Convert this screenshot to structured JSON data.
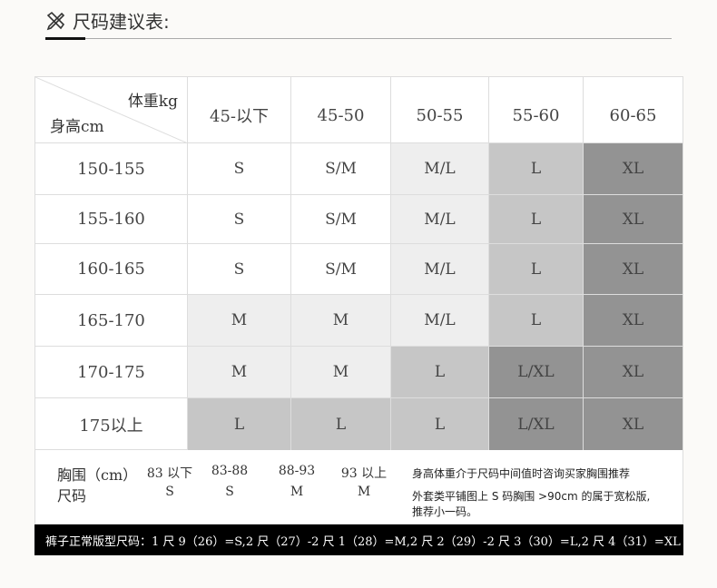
{
  "title": "尺码建议表:",
  "title_icon": "ruler-pencil-icon",
  "table": {
    "corner_weight": "体重kg",
    "corner_height": "身高cm",
    "columns": [
      "45-以下",
      "45-50",
      "50-55",
      "55-60",
      "60-65"
    ],
    "rows": [
      {
        "height": "150-155",
        "sizes": [
          "S",
          "S/M",
          "M/L",
          "L",
          "XL"
        ],
        "shades": [
          0,
          0,
          1,
          2,
          3
        ]
      },
      {
        "height": "155-160",
        "sizes": [
          "S",
          "S/M",
          "M/L",
          "L",
          "XL"
        ],
        "shades": [
          0,
          0,
          1,
          2,
          3
        ]
      },
      {
        "height": "160-165",
        "sizes": [
          "S",
          "S/M",
          "M/L",
          "L",
          "XL"
        ],
        "shades": [
          0,
          0,
          1,
          2,
          3
        ]
      },
      {
        "height": "165-170",
        "sizes": [
          "M",
          "M",
          "M/L",
          "L",
          "XL"
        ],
        "shades": [
          1,
          1,
          1,
          2,
          3
        ]
      },
      {
        "height": "170-175",
        "sizes": [
          "M",
          "M",
          "L",
          "L/XL",
          "XL"
        ],
        "shades": [
          1,
          1,
          2,
          3,
          3
        ]
      },
      {
        "height": "175以上",
        "sizes": [
          "L",
          "L",
          "L",
          "L/XL",
          "XL"
        ],
        "shades": [
          2,
          2,
          2,
          3,
          3
        ]
      }
    ],
    "shade_colors": [
      "#ffffff",
      "#eeeeee",
      "#c6c6c6",
      "#939393"
    ]
  },
  "chest": {
    "label": "胸围（cm）",
    "size_label": "尺码",
    "ranges": [
      "83 以下",
      "83-88",
      "88-93",
      "93 以上"
    ],
    "sizes": [
      "S",
      "S",
      "M",
      "M"
    ],
    "note1": "身高体重介于尺码中间值时咨询买家胸围推荐",
    "note2": "外套类平铺图上 S 码胸围 >90cm 的属于宽松版,",
    "note3": "推荐小一码。"
  },
  "pants": "裤子正常版型尺码：1 尺 9（26）=S,2 尺（27）-2 尺 1（28）=M,2 尺 2（29）-2 尺 3（30）=L,2 尺 4（31）=XL"
}
